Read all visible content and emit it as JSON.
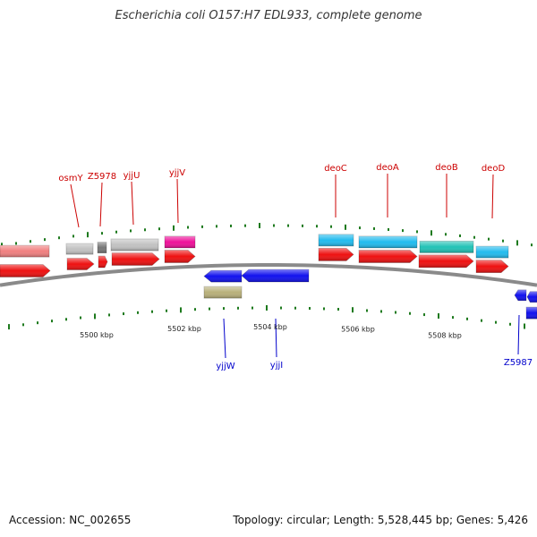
{
  "title": "Escherichia coli O157:H7 EDL933, complete genome",
  "accession": "Accession: NC_002655",
  "summary": "Topology: circular; Length: 5,528,445 bp; Genes: 5,426",
  "colors": {
    "backbone": "#8a8a8a",
    "tick": "#1e7a1e",
    "scale_label": "#222222",
    "label_forward": "#cc0000",
    "label_reverse": "#0000cc",
    "red": "#ee1111",
    "pink": "#f07f7f",
    "gray": "#c2c2c2",
    "darkgray": "#777777",
    "magenta": "#ee1199",
    "cyan": "#22bbee",
    "teal": "#22c2b6",
    "blue": "#1111ee",
    "olive": "#b8b07a"
  },
  "scale": [
    {
      "label": "5500 kbp"
    },
    {
      "label": "5502 kbp"
    },
    {
      "label": "5504 kbp"
    },
    {
      "label": "5506 kbp"
    },
    {
      "label": "5508 kbp"
    }
  ],
  "gene_labels": [
    {
      "name": "osmY",
      "strand": "forward"
    },
    {
      "name": "Z5978",
      "strand": "forward"
    },
    {
      "name": "yjjU",
      "strand": "forward"
    },
    {
      "name": "yjjV",
      "strand": "forward"
    },
    {
      "name": "deoC",
      "strand": "forward"
    },
    {
      "name": "deoA",
      "strand": "forward"
    },
    {
      "name": "deoB",
      "strand": "forward"
    },
    {
      "name": "deoD",
      "strand": "forward"
    },
    {
      "name": "yjjW",
      "strand": "reverse"
    },
    {
      "name": "yjjI",
      "strand": "reverse"
    },
    {
      "name": "Z5987",
      "strand": "reverse"
    }
  ]
}
